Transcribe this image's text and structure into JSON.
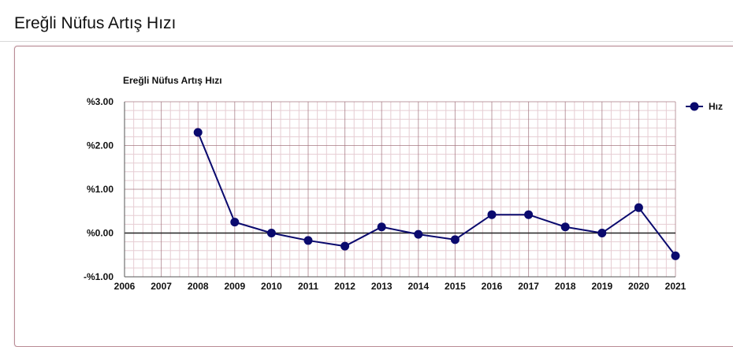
{
  "page": {
    "title": "Ereğli Nüfus Artış Hızı"
  },
  "colors": {
    "series": "#0a0a6e",
    "grid_major": "#a0707a",
    "grid_minor": "#e6cdd3",
    "zero_line": "#222222"
  },
  "chart_data": {
    "type": "line",
    "title": "Ereğli Nüfus Artış Hızı",
    "xlabel": "",
    "ylabel": "",
    "x": [
      2006,
      2007,
      2008,
      2009,
      2010,
      2011,
      2012,
      2013,
      2014,
      2015,
      2016,
      2017,
      2018,
      2019,
      2020,
      2021
    ],
    "x_tick_labels": [
      "2006",
      "2007",
      "2008",
      "2009",
      "2010",
      "2011",
      "2012",
      "2013",
      "2014",
      "2015",
      "2016",
      "2017",
      "2018",
      "2019",
      "2020",
      "2021"
    ],
    "ylim": [
      -1,
      3
    ],
    "y_ticks": [
      3,
      2,
      1,
      0,
      -1
    ],
    "y_tick_labels": [
      "%3.00",
      "%2.00",
      "%1.00",
      "%0.00",
      "-%1.00"
    ],
    "grid": true,
    "legend_position": "top-right",
    "series": [
      {
        "name": "Hız",
        "values": [
          null,
          null,
          2.3,
          0.25,
          0.0,
          -0.17,
          -0.3,
          0.14,
          -0.03,
          -0.15,
          0.42,
          0.42,
          0.14,
          0.0,
          0.58,
          -0.52
        ]
      }
    ]
  }
}
